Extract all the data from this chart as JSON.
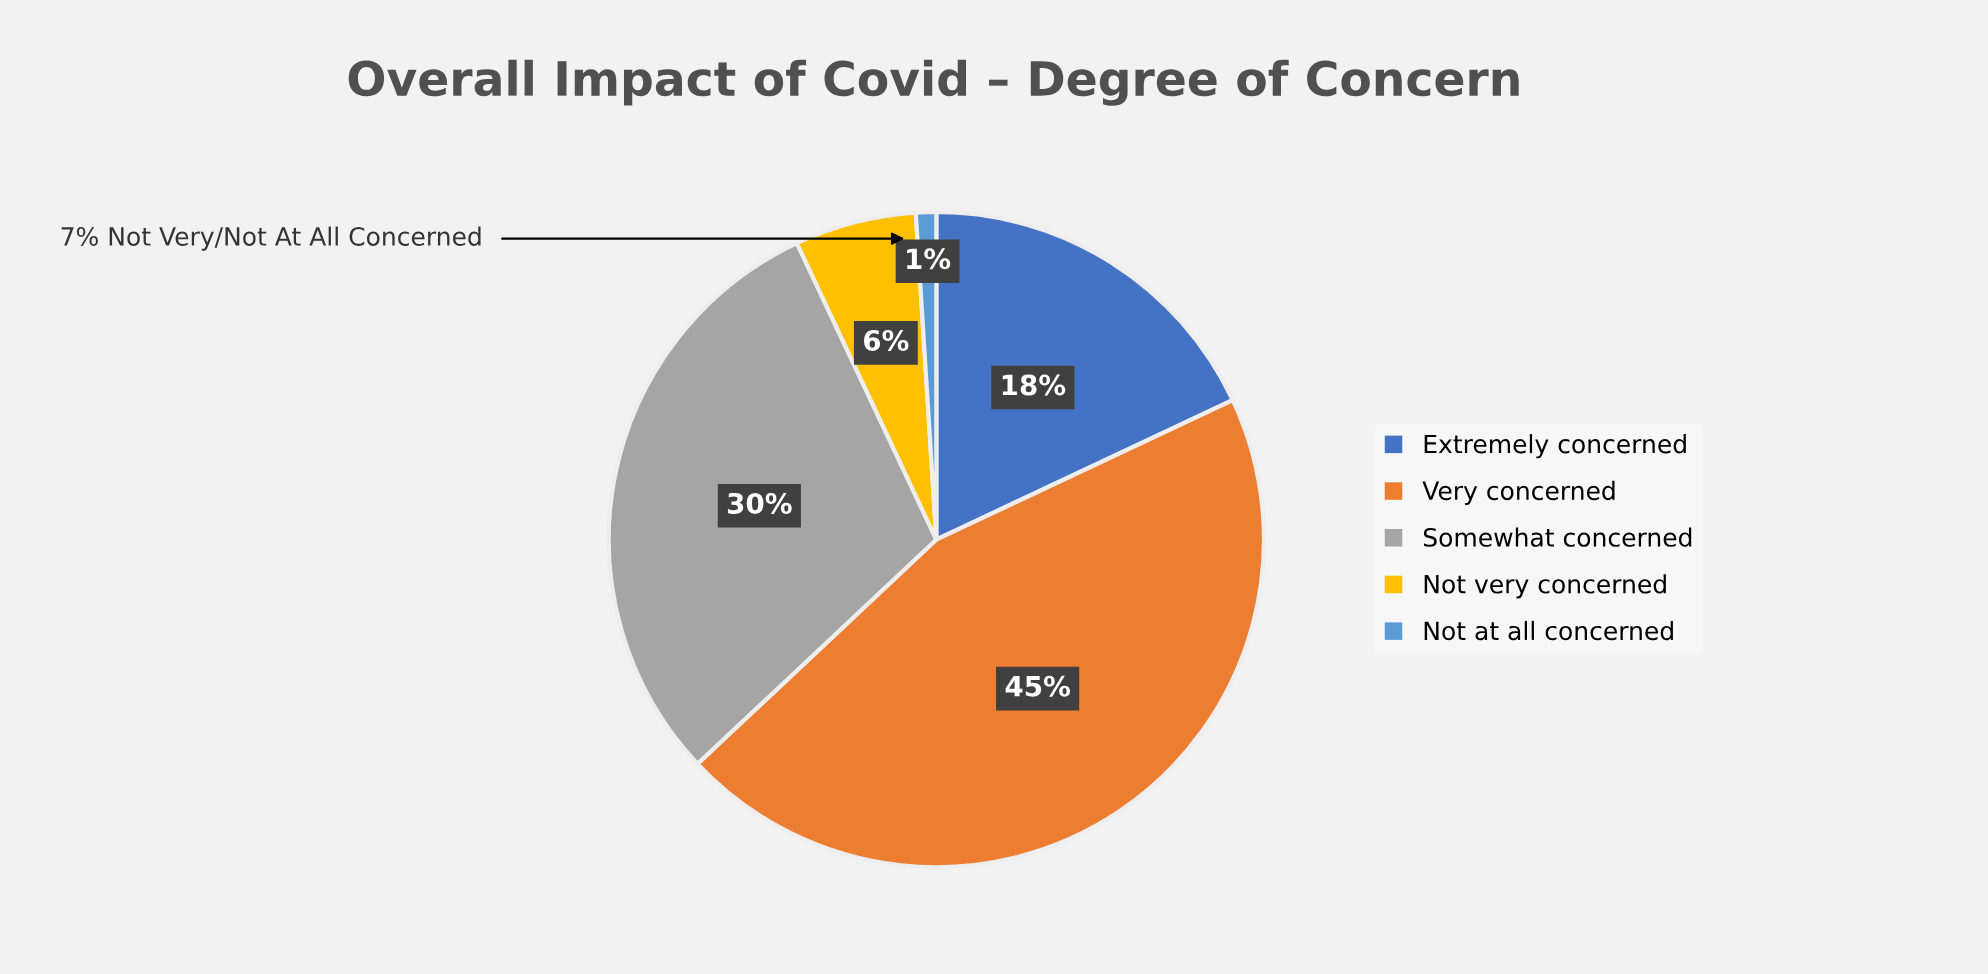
{
  "chart_data": {
    "type": "pie",
    "title": "Overall Impact of Covid – Degree of Concern",
    "categories": [
      "Extremely concerned",
      "Very concerned",
      "Somewhat concerned",
      "Not very concerned",
      "Not at all concerned"
    ],
    "values": [
      18,
      45,
      30,
      6,
      1
    ],
    "colors": [
      "#4472c4",
      "#ed7d31",
      "#a5a5a5",
      "#ffc000",
      "#5b9bd5"
    ],
    "value_labels": [
      "18%",
      "45%",
      "30%",
      "6%",
      "1%"
    ],
    "annotations": [
      "7% Not Very/Not At All Concerned"
    ],
    "legend": "right"
  }
}
